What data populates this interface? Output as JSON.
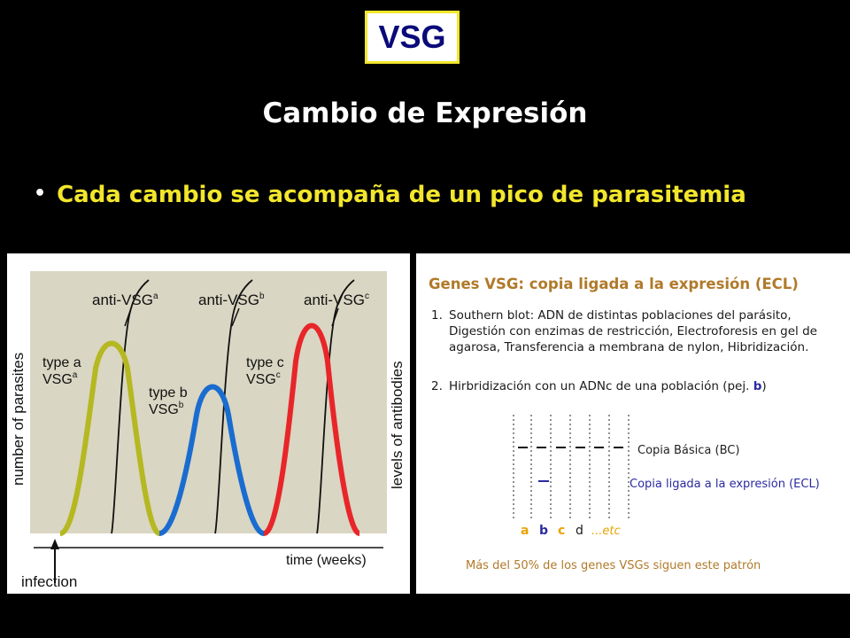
{
  "header": {
    "acronym": "VSG",
    "title": "Cambio de Expresión",
    "bullet": "Cada cambio se acompaña de un pico de parasitemia"
  },
  "figure": {
    "y_axis_left": "number of parasites",
    "y_axis_right": "levels of antibodies",
    "x_axis": "time (weeks)",
    "infection_label": "infection",
    "antibody_labels": [
      {
        "base": "anti-VSG",
        "sup": "a"
      },
      {
        "base": "anti-VSG",
        "sup": "b"
      },
      {
        "base": "anti-VSG",
        "sup": "c"
      }
    ],
    "type_labels": [
      {
        "line1": "type a",
        "line2_base": "VSG",
        "line2_sup": "a",
        "color": "#b5b820"
      },
      {
        "line1": "type b",
        "line2_base": "VSG",
        "line2_sup": "b",
        "color": "#1a6cd0"
      },
      {
        "line1": "type c",
        "line2_base": "VSG",
        "line2_sup": "c",
        "color": "#e8262a"
      }
    ]
  },
  "panel": {
    "title": "Genes VSG: copia ligada a la expresión (ECL)",
    "step1_num": "1.",
    "step1_lines": [
      "Southern blot: ADN de distintas poblaciones del parásito,",
      "Digestión con enzimas de restricción, Electroforesis en gel de",
      "agarosa, Transferencia a membrana de nylon, Hibridización."
    ],
    "step2_num": "2.",
    "step2_text": "Hirbridización con un ADNc de una población  (pej. ",
    "step2_b": "b",
    "step2_close": ")",
    "bc_label": "Copia Básica (BC)",
    "ecl_label": "Copia ligada a la expresión (ECL)",
    "lanes": [
      {
        "label": "a",
        "color": "#e6a400"
      },
      {
        "label": "b",
        "color": "#2a2aa0"
      },
      {
        "label": "c",
        "color": "#e6a400"
      },
      {
        "label": "d",
        "color": "#1a1a1a"
      },
      {
        "label": "...etc",
        "color": "#e6a400"
      }
    ],
    "footnote": "Más del 50% de los genes VSGs siguen este patrón"
  },
  "colors": {
    "background": "#000000",
    "accent_yellow": "#f2e62c",
    "title_blue": "#0a0a7a"
  }
}
